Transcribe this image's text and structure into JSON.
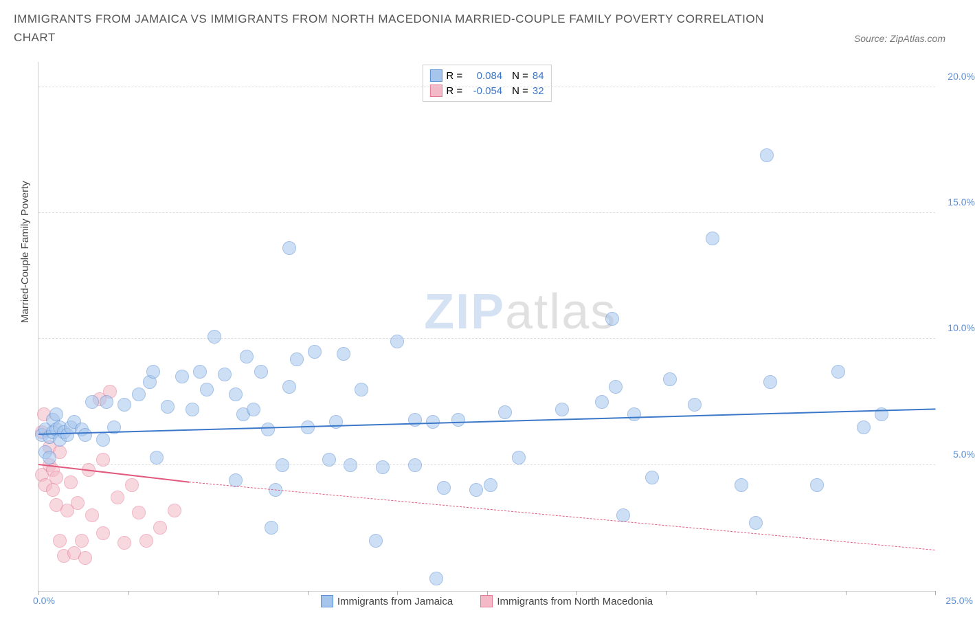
{
  "title": "IMMIGRANTS FROM JAMAICA VS IMMIGRANTS FROM NORTH MACEDONIA MARRIED-COUPLE FAMILY POVERTY CORRELATION CHART",
  "source": "Source: ZipAtlas.com",
  "ylabel": "Married-Couple Family Poverty",
  "watermark": {
    "part1": "ZIP",
    "part2": "atlas"
  },
  "chart": {
    "type": "scatter",
    "xlim": [
      0,
      25
    ],
    "ylim": [
      0,
      21
    ],
    "yticks": [
      5,
      10,
      15,
      20
    ],
    "ytick_labels": [
      "5.0%",
      "10.0%",
      "15.0%",
      "20.0%"
    ],
    "xticks": [
      0,
      2.5,
      5,
      7.5,
      10,
      12.5,
      15,
      17.5,
      20,
      22.5,
      25
    ],
    "xlim_labels": {
      "min": "0.0%",
      "max": "25.0%"
    },
    "background_color": "#ffffff",
    "grid_color": "#dddddd",
    "marker_radius": 9,
    "marker_opacity": 0.55,
    "series": [
      {
        "name": "jamaica",
        "label": "Immigrants from Jamaica",
        "color_fill": "#a6c5ec",
        "color_stroke": "#5b8fd6",
        "R": "0.084",
        "N": "84",
        "trend": {
          "x1": 0,
          "y1": 6.2,
          "x2": 25,
          "y2": 7.2,
          "color": "#3b78c9",
          "width": 2,
          "dash": false
        },
        "points": [
          [
            0.1,
            6.2
          ],
          [
            0.2,
            5.5
          ],
          [
            0.2,
            6.4
          ],
          [
            0.3,
            6.1
          ],
          [
            0.3,
            5.3
          ],
          [
            0.4,
            6.3
          ],
          [
            0.4,
            6.8
          ],
          [
            0.5,
            6.4
          ],
          [
            0.5,
            7.0
          ],
          [
            0.6,
            6.0
          ],
          [
            0.6,
            6.5
          ],
          [
            0.7,
            6.3
          ],
          [
            0.8,
            6.2
          ],
          [
            0.9,
            6.5
          ],
          [
            1.0,
            6.7
          ],
          [
            1.2,
            6.4
          ],
          [
            1.3,
            6.2
          ],
          [
            1.5,
            7.5
          ],
          [
            1.8,
            6.0
          ],
          [
            1.9,
            7.5
          ],
          [
            2.1,
            6.5
          ],
          [
            2.4,
            7.4
          ],
          [
            2.8,
            7.8
          ],
          [
            3.1,
            8.3
          ],
          [
            3.2,
            8.7
          ],
          [
            3.3,
            5.3
          ],
          [
            3.6,
            7.3
          ],
          [
            4.0,
            8.5
          ],
          [
            4.3,
            7.2
          ],
          [
            4.5,
            8.7
          ],
          [
            4.7,
            8.0
          ],
          [
            4.9,
            10.1
          ],
          [
            5.2,
            8.6
          ],
          [
            5.5,
            7.8
          ],
          [
            5.5,
            4.4
          ],
          [
            5.7,
            7.0
          ],
          [
            5.8,
            9.3
          ],
          [
            6.0,
            7.2
          ],
          [
            6.2,
            8.7
          ],
          [
            6.4,
            6.4
          ],
          [
            6.5,
            2.5
          ],
          [
            6.6,
            4.0
          ],
          [
            6.8,
            5.0
          ],
          [
            7.0,
            8.1
          ],
          [
            7.0,
            13.6
          ],
          [
            7.2,
            9.2
          ],
          [
            7.5,
            6.5
          ],
          [
            7.7,
            9.5
          ],
          [
            8.1,
            5.2
          ],
          [
            8.3,
            6.7
          ],
          [
            8.5,
            9.4
          ],
          [
            8.7,
            5.0
          ],
          [
            9.0,
            8.0
          ],
          [
            9.4,
            2.0
          ],
          [
            9.6,
            4.9
          ],
          [
            10.0,
            9.9
          ],
          [
            10.5,
            6.8
          ],
          [
            10.5,
            5.0
          ],
          [
            11.0,
            6.7
          ],
          [
            11.1,
            0.5
          ],
          [
            11.3,
            4.1
          ],
          [
            11.7,
            6.8
          ],
          [
            12.2,
            4.0
          ],
          [
            12.6,
            4.2
          ],
          [
            13.0,
            7.1
          ],
          [
            13.4,
            5.3
          ],
          [
            14.6,
            7.2
          ],
          [
            15.7,
            7.5
          ],
          [
            16.0,
            10.8
          ],
          [
            16.1,
            8.1
          ],
          [
            16.3,
            3.0
          ],
          [
            16.6,
            7.0
          ],
          [
            17.1,
            4.5
          ],
          [
            17.6,
            8.4
          ],
          [
            18.3,
            7.4
          ],
          [
            18.8,
            14.0
          ],
          [
            19.6,
            4.2
          ],
          [
            20.0,
            2.7
          ],
          [
            20.3,
            17.3
          ],
          [
            20.4,
            8.3
          ],
          [
            21.7,
            4.2
          ],
          [
            22.3,
            8.7
          ],
          [
            23.0,
            6.5
          ],
          [
            23.5,
            7.0
          ]
        ]
      },
      {
        "name": "north-macedonia",
        "label": "Immigrants from North Macedonia",
        "color_fill": "#f4b9c6",
        "color_stroke": "#e67a94",
        "R": "-0.054",
        "N": "32",
        "trend_solid": {
          "x1": 0,
          "y1": 5.0,
          "x2": 4.2,
          "y2": 4.3,
          "color": "#e15a7d",
          "width": 2
        },
        "trend_dash": {
          "x1": 4.2,
          "y1": 4.3,
          "x2": 25,
          "y2": 1.6,
          "color": "#e15a7d",
          "width": 1
        },
        "points": [
          [
            0.1,
            4.6
          ],
          [
            0.1,
            6.3
          ],
          [
            0.2,
            4.2
          ],
          [
            0.15,
            7.0
          ],
          [
            0.3,
            5.0
          ],
          [
            0.3,
            5.7
          ],
          [
            0.4,
            4.8
          ],
          [
            0.4,
            4.0
          ],
          [
            0.5,
            3.4
          ],
          [
            0.5,
            4.5
          ],
          [
            0.6,
            5.5
          ],
          [
            0.6,
            2.0
          ],
          [
            0.7,
            1.4
          ],
          [
            0.8,
            3.2
          ],
          [
            0.9,
            4.3
          ],
          [
            1.0,
            1.5
          ],
          [
            1.1,
            3.5
          ],
          [
            1.2,
            2.0
          ],
          [
            1.3,
            1.3
          ],
          [
            1.4,
            4.8
          ],
          [
            1.5,
            3.0
          ],
          [
            1.7,
            7.6
          ],
          [
            1.8,
            5.2
          ],
          [
            1.8,
            2.3
          ],
          [
            2.0,
            7.9
          ],
          [
            2.2,
            3.7
          ],
          [
            2.4,
            1.9
          ],
          [
            2.6,
            4.2
          ],
          [
            2.8,
            3.1
          ],
          [
            3.0,
            2.0
          ],
          [
            3.4,
            2.5
          ],
          [
            3.8,
            3.2
          ]
        ]
      }
    ]
  },
  "legend_top_prefix": {
    "r": "R =",
    "n": "N ="
  }
}
